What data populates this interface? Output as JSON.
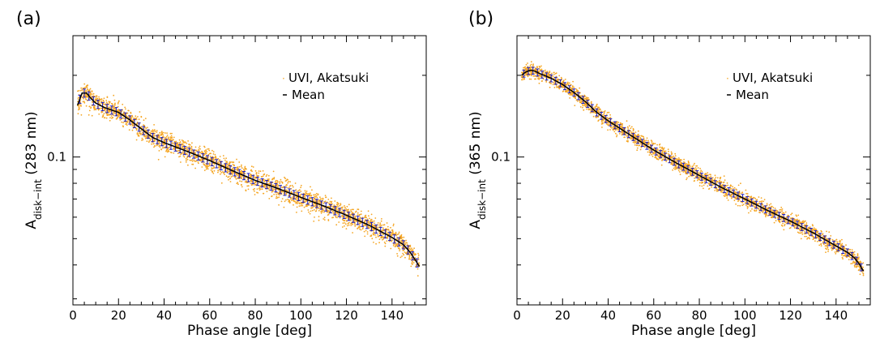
{
  "colors": {
    "observation": "#f5a623",
    "mean": "#000000",
    "error_bar": "#1f1fbf"
  },
  "chart_data": [
    {
      "type": "scatter",
      "panel_label": "(a)",
      "xlabel": "Phase angle [deg]",
      "ylabel_main": "A",
      "ylabel_sub": "disk−int",
      "ylabel_tail": " (283 nm)",
      "xlim": [
        0,
        155
      ],
      "ylim": [
        0.0285,
        0.28
      ],
      "yscale": "log",
      "xticks": [
        0,
        20,
        40,
        60,
        80,
        100,
        120,
        140
      ],
      "xtick_labels": [
        "0",
        "20",
        "40",
        "60",
        "80",
        "100",
        "120",
        "140"
      ],
      "yticks": [
        0.1
      ],
      "ytick_labels": [
        "0.1"
      ],
      "legend": [
        "UVI, Akatsuki",
        "Mean"
      ],
      "legend_position": "top-right",
      "series": [
        {
          "name": "UVI, Akatsuki",
          "kind": "scatter",
          "spread": 0.045,
          "x": [
            2,
            4,
            6,
            8,
            10,
            14,
            20,
            25,
            30,
            35,
            40,
            50,
            60,
            70,
            80,
            90,
            100,
            110,
            120,
            130,
            140,
            145,
            148,
            150,
            152
          ],
          "y": [
            0.155,
            0.172,
            0.172,
            0.164,
            0.158,
            0.152,
            0.146,
            0.137,
            0.127,
            0.118,
            0.113,
            0.105,
            0.097,
            0.089,
            0.082,
            0.0765,
            0.071,
            0.066,
            0.061,
            0.056,
            0.0505,
            0.0475,
            0.0445,
            0.042,
            0.0395
          ]
        },
        {
          "name": "Mean",
          "kind": "line_errorbar",
          "error_frac": 0.035,
          "x": [
            2,
            4,
            6,
            8,
            10,
            14,
            20,
            25,
            30,
            35,
            40,
            50,
            60,
            70,
            80,
            90,
            100,
            110,
            120,
            130,
            140,
            145,
            148,
            150,
            152
          ],
          "y": [
            0.155,
            0.172,
            0.172,
            0.164,
            0.158,
            0.152,
            0.146,
            0.137,
            0.127,
            0.118,
            0.113,
            0.105,
            0.097,
            0.089,
            0.082,
            0.0765,
            0.071,
            0.066,
            0.061,
            0.056,
            0.0505,
            0.0475,
            0.0445,
            0.042,
            0.0395
          ]
        }
      ]
    },
    {
      "type": "scatter",
      "panel_label": "(b)",
      "xlabel": "Phase angle [deg]",
      "ylabel_main": "A",
      "ylabel_sub": "disk−int",
      "ylabel_tail": " (365 nm)",
      "xlim": [
        0,
        155
      ],
      "ylim": [
        0.0285,
        0.28
      ],
      "yscale": "log",
      "xticks": [
        0,
        20,
        40,
        60,
        80,
        100,
        120,
        140
      ],
      "xtick_labels": [
        "0",
        "20",
        "40",
        "60",
        "80",
        "100",
        "120",
        "140"
      ],
      "yticks": [
        0.1
      ],
      "ytick_labels": [
        "0.1"
      ],
      "legend": [
        "UVI, Akatsuki",
        "Mean"
      ],
      "legend_position": "top-right",
      "series": [
        {
          "name": "UVI, Akatsuki",
          "kind": "scatter",
          "spread": 0.032,
          "x": [
            2,
            4,
            6,
            8,
            10,
            15,
            20,
            25,
            30,
            35,
            40,
            50,
            60,
            70,
            80,
            90,
            100,
            110,
            120,
            130,
            140,
            145,
            148,
            150,
            152
          ],
          "y": [
            0.2,
            0.206,
            0.209,
            0.207,
            0.203,
            0.195,
            0.185,
            0.173,
            0.16,
            0.146,
            0.136,
            0.12,
            0.106,
            0.095,
            0.0855,
            0.077,
            0.07,
            0.0635,
            0.058,
            0.0525,
            0.047,
            0.0445,
            0.0425,
            0.0405,
            0.038
          ]
        },
        {
          "name": "Mean",
          "kind": "line_errorbar",
          "error_frac": 0.03,
          "x": [
            2,
            4,
            6,
            8,
            10,
            15,
            20,
            25,
            30,
            35,
            40,
            50,
            60,
            70,
            80,
            90,
            100,
            110,
            120,
            130,
            140,
            145,
            148,
            150,
            152
          ],
          "y": [
            0.2,
            0.206,
            0.209,
            0.207,
            0.203,
            0.195,
            0.185,
            0.173,
            0.16,
            0.146,
            0.136,
            0.12,
            0.106,
            0.095,
            0.0855,
            0.077,
            0.07,
            0.0635,
            0.058,
            0.0525,
            0.047,
            0.0445,
            0.0425,
            0.0405,
            0.038
          ]
        }
      ]
    }
  ]
}
